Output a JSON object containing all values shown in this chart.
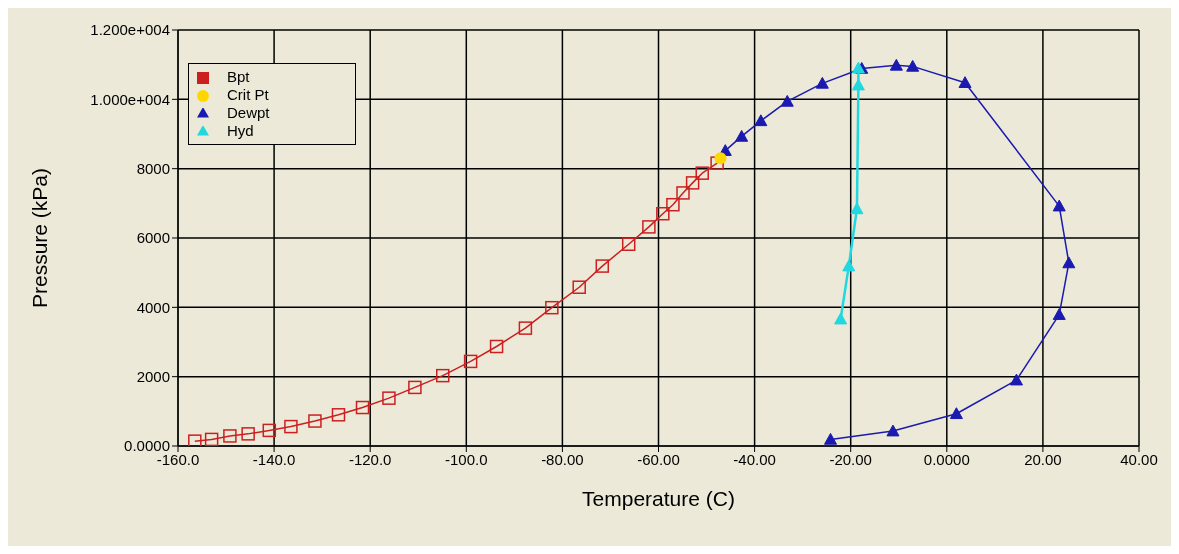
{
  "chart_data": {
    "type": "line",
    "xlabel": "Temperature (C)",
    "ylabel": "Pressure (kPa)",
    "xlim": [
      -160,
      40
    ],
    "xticks": [
      {
        "value": -160,
        "label": "-160.0"
      },
      {
        "value": -140,
        "label": "-140.0"
      },
      {
        "value": -120,
        "label": "-120.0"
      },
      {
        "value": -100,
        "label": "-100.0"
      },
      {
        "value": -80,
        "label": "-80.00"
      },
      {
        "value": -60,
        "label": "-60.00"
      },
      {
        "value": -40,
        "label": "-40.00"
      },
      {
        "value": -20,
        "label": "-20.00"
      },
      {
        "value": 0,
        "label": "0.0000"
      },
      {
        "value": 20,
        "label": "20.00"
      },
      {
        "value": 40,
        "label": "40.00"
      }
    ],
    "ylim": [
      0,
      12000
    ],
    "yticks": [
      {
        "value": 0,
        "label": "0.0000"
      },
      2000,
      4000,
      6000,
      8000,
      {
        "value": 10000,
        "label": "1.000e+004"
      },
      {
        "value": 12000,
        "label": "1.200e+004"
      }
    ],
    "grid": true,
    "legend": "top left",
    "line_style": "solid",
    "series": [
      {
        "name": "Bpt",
        "color": "#cc2020",
        "marker": "square",
        "x": [
          -156.5,
          -153,
          -149.2,
          -145.4,
          -141,
          -136.5,
          -131.5,
          -126.6,
          -121.6,
          -116.1,
          -110.7,
          -104.9,
          -99.1,
          -93.7,
          -87.7,
          -82.2,
          -76.5,
          -71.7,
          -66.2,
          -62,
          -59.1,
          -57,
          -54.9,
          -52.9,
          -50.9,
          -47.8
        ],
        "values": [
          140,
          190,
          290,
          350,
          450,
          560,
          720,
          900,
          1110,
          1380,
          1690,
          2030,
          2440,
          2870,
          3400,
          3990,
          4580,
          5190,
          5820,
          6320,
          6700,
          6960,
          7300,
          7590,
          7870,
          8160
        ]
      },
      {
        "name": "Dewpt",
        "color": "#1a1ab0",
        "marker": "triangle",
        "x": [
          -24.2,
          -11.2,
          2,
          14.5,
          23.4,
          25.4,
          23.4,
          3.8,
          -7.1,
          -10.5,
          -17.7,
          -25.9,
          -33.2,
          -38.7,
          -42.7,
          -46.1
        ],
        "values": [
          190,
          430,
          930,
          1900,
          3790,
          5280,
          6920,
          10480,
          10950,
          10980,
          10890,
          10460,
          9940,
          9380,
          8930,
          8520
        ]
      },
      {
        "name": "Crit Pt",
        "type": "scatter",
        "color": "#ffd700",
        "marker": "circle",
        "x": [
          -47.1
        ],
        "values": [
          8300
        ]
      },
      {
        "name": "Hyd",
        "color": "#20d8e0",
        "marker": "triangle",
        "x": [
          -22.1,
          -20.4,
          -18.7,
          -18.4,
          -18.4
        ],
        "values": [
          3660,
          5190,
          6840,
          10410,
          10900
        ]
      }
    ]
  }
}
